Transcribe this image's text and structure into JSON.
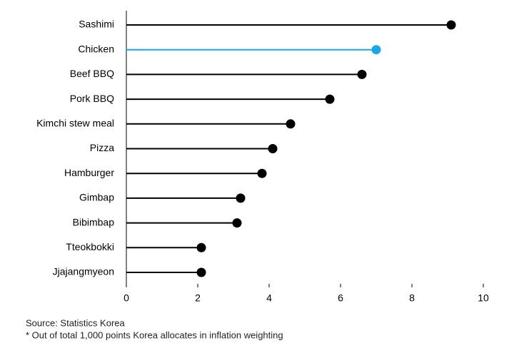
{
  "chart_data": {
    "type": "lollipop",
    "categories": [
      "Sashimi",
      "Chicken",
      "Beef BBQ",
      "Pork BBQ",
      "Kimchi stew meal",
      "Pizza",
      "Hamburger",
      "Gimbap",
      "Bibimbap",
      "Tteokbokki",
      "Jjajangmyeon"
    ],
    "values": [
      9.1,
      7.0,
      6.6,
      5.7,
      4.6,
      4.1,
      3.8,
      3.2,
      3.1,
      2.1,
      2.1
    ],
    "colors": [
      "#000000",
      "#1ba6ea",
      "#000000",
      "#000000",
      "#000000",
      "#000000",
      "#000000",
      "#000000",
      "#000000",
      "#000000",
      "#000000"
    ],
    "xlim": [
      0,
      10
    ],
    "xticks": [
      0,
      2,
      4,
      6,
      8,
      10
    ],
    "source": "Source: Statistics Korea",
    "note": "* Out of total 1,000 points Korea allocates in inflation weighting"
  }
}
